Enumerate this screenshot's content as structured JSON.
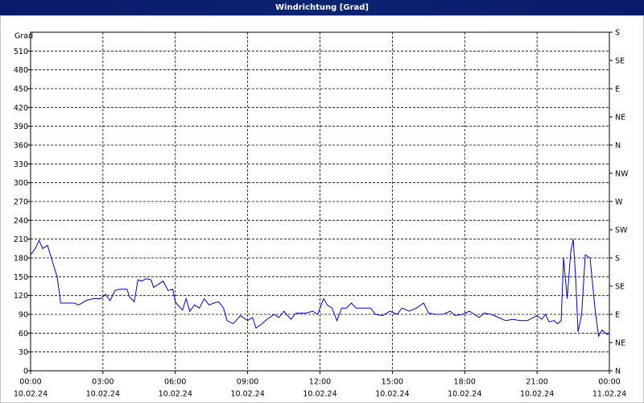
{
  "chart_data": {
    "type": "line",
    "title": "Windrichtung [Grad]",
    "y_label": "Grad",
    "grid": true,
    "xlim": [
      0,
      24
    ],
    "xticks": [
      {
        "value": 0,
        "label": "00:00",
        "date": "10.02.24"
      },
      {
        "value": 3,
        "label": "03:00",
        "date": "10.02.24"
      },
      {
        "value": 6,
        "label": "06:00",
        "date": "10.02.24"
      },
      {
        "value": 9,
        "label": "09:00",
        "date": "10.02.24"
      },
      {
        "value": 12,
        "label": "12:00",
        "date": "10.02.24"
      },
      {
        "value": 15,
        "label": "15:00",
        "date": "10.02.24"
      },
      {
        "value": 18,
        "label": "18:00",
        "date": "10.02.24"
      },
      {
        "value": 21,
        "label": "21:00",
        "date": "10.02.24"
      },
      {
        "value": 24,
        "label": "00:00",
        "date": "11.02.24"
      }
    ],
    "ylim": [
      0,
      540
    ],
    "yticks": [
      0,
      30,
      60,
      90,
      120,
      150,
      180,
      210,
      240,
      270,
      300,
      330,
      360,
      390,
      420,
      450,
      480,
      510
    ],
    "y2lim": [
      0,
      540
    ],
    "y2ticks": [
      {
        "value": 0,
        "label": "N"
      },
      {
        "value": 45,
        "label": "NE"
      },
      {
        "value": 90,
        "label": "E"
      },
      {
        "value": 135,
        "label": "SE"
      },
      {
        "value": 180,
        "label": "S"
      },
      {
        "value": 225,
        "label": "SW"
      },
      {
        "value": 270,
        "label": "W"
      },
      {
        "value": 315,
        "label": "NW"
      },
      {
        "value": 360,
        "label": "N"
      },
      {
        "value": 405,
        "label": "NE"
      },
      {
        "value": 450,
        "label": "E"
      },
      {
        "value": 495,
        "label": "SE"
      },
      {
        "value": 540,
        "label": "S"
      }
    ],
    "series": [
      {
        "color": "#0000cc",
        "x": [
          0,
          0.2,
          0.35,
          0.5,
          0.7,
          0.9,
          1.1,
          1.25,
          1.5,
          1.8,
          2.0,
          2.3,
          2.6,
          2.9,
          3.0,
          3.1,
          3.3,
          3.5,
          3.7,
          4.0,
          4.1,
          4.3,
          4.45,
          4.6,
          4.8,
          5.0,
          5.1,
          5.3,
          5.5,
          5.7,
          5.9,
          6.0,
          6.1,
          6.3,
          6.45,
          6.6,
          6.8,
          7.0,
          7.2,
          7.4,
          7.6,
          7.8,
          8.0,
          8.15,
          8.4,
          8.7,
          9.0,
          9.2,
          9.35,
          9.6,
          9.8,
          10.1,
          10.3,
          10.5,
          10.8,
          11.0,
          11.4,
          11.7,
          11.9,
          12.0,
          12.15,
          12.3,
          12.5,
          12.7,
          12.9,
          13.1,
          13.3,
          13.5,
          13.8,
          14.1,
          14.3,
          14.6,
          14.9,
          15.2,
          15.4,
          15.7,
          16.0,
          16.3,
          16.5,
          16.8,
          17.1,
          17.4,
          17.6,
          17.9,
          18.2,
          18.4,
          18.6,
          18.8,
          19.1,
          19.4,
          19.7,
          20.0,
          20.3,
          20.6,
          21.0,
          21.2,
          21.35,
          21.5,
          21.7,
          21.85,
          22.0,
          22.1,
          22.25,
          22.4,
          22.5,
          22.6,
          22.7,
          22.85,
          23.0,
          23.2,
          23.4,
          23.55,
          23.7,
          23.9,
          24.0
        ],
        "values": [
          185,
          195,
          208,
          195,
          200,
          175,
          150,
          108,
          108,
          108,
          105,
          112,
          115,
          115,
          118,
          122,
          112,
          128,
          130,
          130,
          118,
          110,
          145,
          143,
          147,
          145,
          133,
          138,
          143,
          128,
          130,
          110,
          105,
          97,
          115,
          95,
          105,
          100,
          115,
          105,
          108,
          110,
          100,
          80,
          75,
          88,
          80,
          85,
          68,
          75,
          82,
          90,
          85,
          95,
          82,
          92,
          92,
          95,
          90,
          100,
          115,
          105,
          100,
          80,
          100,
          100,
          108,
          100,
          100,
          100,
          90,
          88,
          95,
          90,
          100,
          95,
          100,
          108,
          92,
          90,
          90,
          95,
          88,
          90,
          95,
          90,
          85,
          92,
          90,
          85,
          80,
          82,
          80,
          80,
          88,
          82,
          90,
          78,
          80,
          75,
          80,
          180,
          115,
          190,
          210,
          150,
          62,
          90,
          185,
          180,
          100,
          55,
          65,
          58,
          60
        ]
      }
    ]
  }
}
